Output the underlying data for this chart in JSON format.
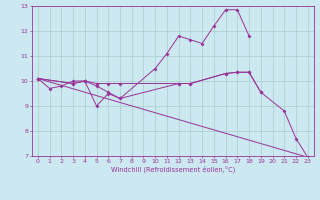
{
  "xlabel": "Windchill (Refroidissement éolien,°C)",
  "bg_color": "#cce8f0",
  "grid_color": "#aacccc",
  "line_color": "#993399",
  "xlim": [
    -0.5,
    23.5
  ],
  "ylim": [
    7,
    13
  ],
  "yticks": [
    7,
    8,
    9,
    10,
    11,
    12,
    13
  ],
  "xticks": [
    0,
    1,
    2,
    3,
    4,
    5,
    6,
    7,
    8,
    9,
    10,
    11,
    12,
    13,
    14,
    15,
    16,
    17,
    18,
    19,
    20,
    21,
    22,
    23
  ],
  "series1_x": [
    0,
    1,
    2,
    3,
    4,
    5,
    6,
    7,
    10,
    11,
    12,
    13,
    14,
    15,
    16,
    17,
    18
  ],
  "series1_y": [
    10.1,
    9.7,
    9.8,
    10.0,
    10.0,
    9.0,
    9.5,
    9.3,
    10.5,
    11.1,
    11.8,
    11.65,
    11.5,
    12.2,
    12.85,
    12.85,
    11.8
  ],
  "series2_x": [
    0,
    3,
    4,
    5,
    6,
    7,
    12,
    13,
    16,
    17,
    18,
    19
  ],
  "series2_y": [
    10.1,
    9.9,
    10.0,
    9.9,
    9.9,
    9.9,
    9.9,
    9.9,
    10.3,
    10.35,
    10.35,
    9.55
  ],
  "series3_x": [
    0,
    3,
    4,
    5,
    6,
    7,
    12,
    13,
    16,
    17,
    18,
    19,
    21,
    22,
    23
  ],
  "series3_y": [
    10.1,
    9.9,
    10.0,
    9.8,
    9.55,
    9.3,
    9.9,
    9.9,
    10.3,
    10.35,
    10.35,
    9.55,
    8.8,
    7.7,
    6.95
  ],
  "series4_x": [
    0,
    23
  ],
  "series4_y": [
    10.1,
    6.95
  ]
}
